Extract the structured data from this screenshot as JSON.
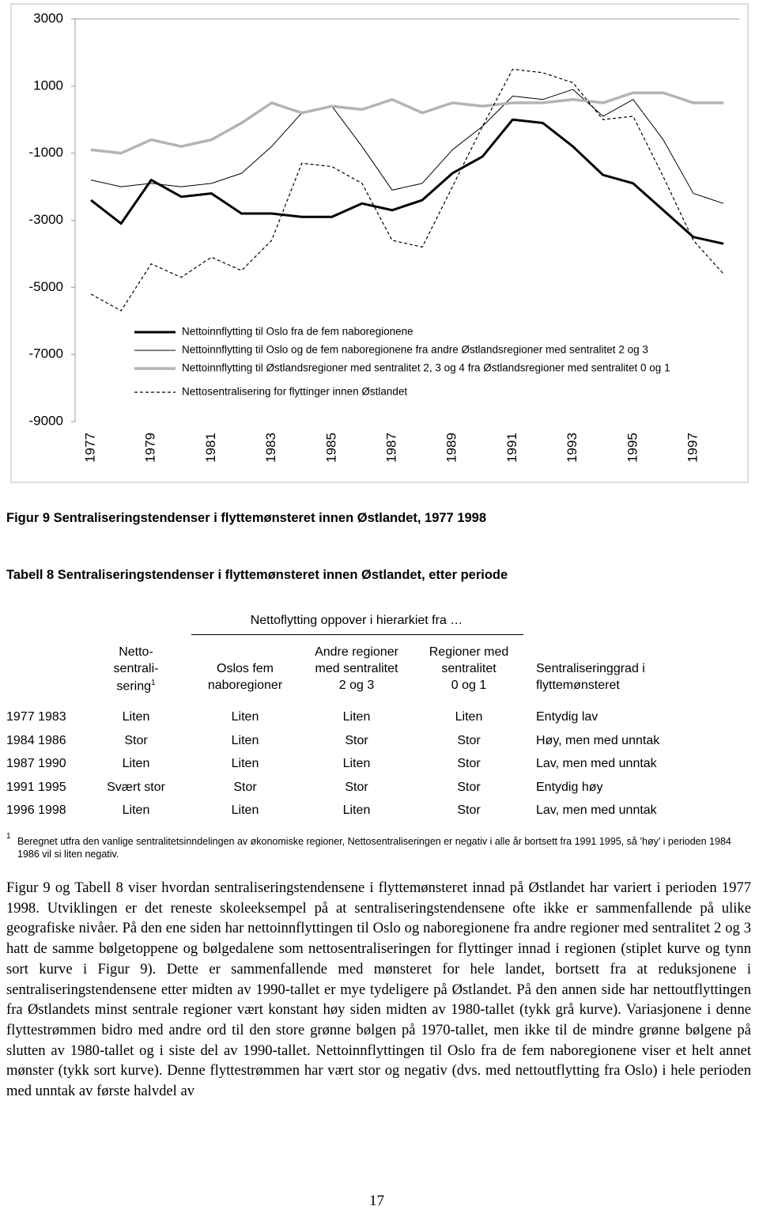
{
  "chart_data": {
    "type": "line",
    "categories": [
      "1977",
      null,
      "1979",
      null,
      "1981",
      null,
      "1983",
      null,
      "1985",
      null,
      "1987",
      null,
      "1989",
      null,
      "1991",
      null,
      "1993",
      null,
      "1995",
      null,
      "1997",
      null
    ],
    "ylim": [
      -9000,
      3000
    ],
    "yticks": [
      3000,
      1000,
      -1000,
      -3000,
      -5000,
      -7000,
      -9000
    ],
    "series": [
      {
        "name": "Nettoinnflytting til Oslo fra de fem naboregionene",
        "color": "#000000",
        "width": 3,
        "linestyle": "solid",
        "values": [
          -2400,
          -3100,
          -1800,
          -2300,
          -2200,
          -2800,
          -2800,
          -2900,
          -2900,
          -2500,
          -2700,
          -2400,
          -1600,
          -1100,
          0,
          -100,
          -800,
          -1650,
          -1900,
          -2700,
          -3500,
          -3700
        ]
      },
      {
        "name": "Nettoinnflytting til Oslo og de fem naboregionene fra andre Østlandsregioner med sentralitet 2 og 3",
        "color": "#000000",
        "width": 1,
        "linestyle": "solid",
        "values": [
          -1800,
          -2000,
          -1900,
          -2000,
          -1900,
          -1600,
          -800,
          200,
          400,
          -800,
          -2100,
          -1900,
          -900,
          -200,
          700,
          600,
          900,
          100,
          600,
          -600,
          -2200,
          -2500
        ]
      },
      {
        "name": "Nettoinnflytting til Østlandsregioner med sentralitet 2, 3 og 4 fra Østlandsregioner med sentralitet 0 og 1",
        "color": "#b4b4b4",
        "width": 3.5,
        "linestyle": "solid",
        "values": [
          -900,
          -1000,
          -600,
          -800,
          -600,
          -100,
          500,
          200,
          400,
          300,
          600,
          200,
          500,
          400,
          500,
          500,
          600,
          500,
          800,
          800,
          500,
          500
        ]
      },
      {
        "name": "Nettosentralisering for flyttinger innen Østlandet",
        "color": "#000000",
        "width": 1.2,
        "linestyle": "dashed",
        "values": [
          -5200,
          -5700,
          -4300,
          -4700,
          -4100,
          -4500,
          -3600,
          -1300,
          -1400,
          -1900,
          -3600,
          -3800,
          -2000,
          -200,
          1500,
          1400,
          1100,
          0,
          100,
          -1700,
          -3600,
          -4600
        ]
      }
    ]
  },
  "figure_caption": "Figur 9 Sentraliseringstendenser i flyttemønsteret innen Østlandet, 1977 1998",
  "table_title": "Tabell 8 Sentraliseringstendenser i flyttemønsteret innen Østlandet, etter periode",
  "table": {
    "group_header": "Nettoflytting oppover i hierarkiet fra …",
    "columns": [
      [
        "Netto-",
        "sentrali-",
        "sering"
      ],
      [
        "Oslos fem",
        "naboregioner"
      ],
      [
        "Andre regioner",
        "med sentralitet",
        "2 og 3"
      ],
      [
        "Regioner med",
        "sentralitet",
        "0 og 1"
      ],
      [
        "Sentraliseringgrad i",
        "flyttemønsteret"
      ]
    ],
    "note_mark": "1",
    "rows": [
      [
        "1977 1983",
        "Liten",
        "Liten",
        "Liten",
        "Liten",
        "Entydig lav"
      ],
      [
        "1984 1986",
        "Stor",
        "Liten",
        "Stor",
        "Stor",
        "Høy, men med unntak"
      ],
      [
        "1987 1990",
        "Liten",
        "Liten",
        "Liten",
        "Stor",
        "Lav, men med unntak"
      ],
      [
        "1991 1995",
        "Svært stor",
        "Stor",
        "Stor",
        "Stor",
        "Entydig høy"
      ],
      [
        "1996 1998",
        "Liten",
        "Liten",
        "Liten",
        "Stor",
        "Lav, men med unntak"
      ]
    ]
  },
  "footnote": {
    "mark": "1",
    "text": "Beregnet utfra den vanlige sentralitetsinndelingen av økonomiske regioner, Nettosentraliseringen er negativ i alle år bortsett fra 1991 1995, så ’høy’ i perioden 1984 1986 vil si liten negativ."
  },
  "body_text": "Figur 9 og Tabell 8 viser hvordan sentraliseringstendensene i flyttemønsteret innad på Østlandet har variert i perioden 1977 1998. Utviklingen er det reneste skoleeksempel på at sentraliseringstendensene ofte ikke er sammenfallende på ulike geografiske nivåer. På den ene siden har nettoinnflyttingen til Oslo og naboregionene fra andre regioner med sentralitet 2 og 3 hatt de samme bølgetoppene og bølgedalene som nettosentraliseringen for flyttinger innad i regionen (stiplet kurve og tynn sort kurve i Figur 9). Dette er sammenfallende med mønsteret for hele landet, bortsett fra at reduksjonene i sentraliseringstendensene etter midten av 1990-tallet er mye tydeligere på Østlandet. På den annen side har nettoutflyttingen fra Østlandets minst sentrale regioner vært konstant høy siden midten av 1980-tallet (tykk grå kurve). Variasjonene i denne flyttestrømmen bidro med andre ord til den store grønne bølgen på 1970-tallet, men ikke til de mindre grønne bølgene på slutten av 1980-tallet og i siste del av 1990-tallet. Nettoinnflyttingen til Oslo fra de fem naboregionene viser et helt annet mønster (tykk sort kurve). Denne flyttestrømmen har vært stor og negativ (dvs. med nettoutflytting fra Oslo) i hele perioden med unntak av første halvdel av",
  "page_number": "17"
}
